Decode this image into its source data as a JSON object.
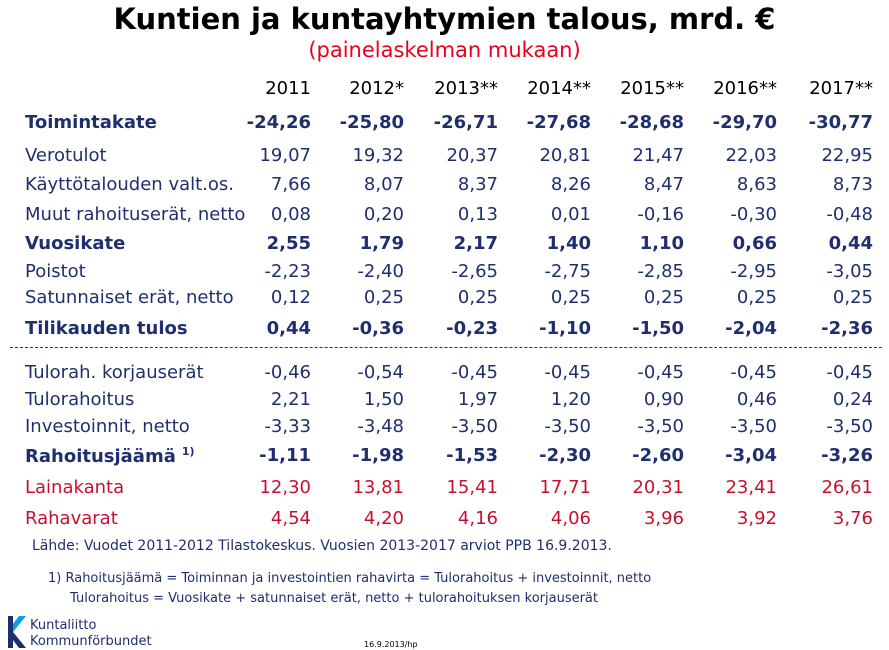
{
  "title": "Kuntien ja kuntayhtymien talous, mrd. €",
  "subtitle": "(painelaskelman mukaan)",
  "years": [
    "2011",
    "2012*",
    "2013**",
    "2014**",
    "2015**",
    "2016**",
    "2017**"
  ],
  "rows": [
    {
      "label": "Toimintakate",
      "style": "bold",
      "values": [
        "-24,26",
        "-25,80",
        "-26,71",
        "-27,68",
        "-28,68",
        "-29,70",
        "-30,77"
      ]
    },
    {
      "label": "Verotulot",
      "style": "normal",
      "values": [
        "19,07",
        "19,32",
        "20,37",
        "20,81",
        "21,47",
        "22,03",
        "22,95"
      ]
    },
    {
      "label": "Käyttötalouden valt.os.",
      "style": "normal",
      "values": [
        "7,66",
        "8,07",
        "8,37",
        "8,26",
        "8,47",
        "8,63",
        "8,73"
      ]
    },
    {
      "label": "Muut rahoituserät, netto",
      "style": "normal",
      "values": [
        "0,08",
        "0,20",
        "0,13",
        "0,01",
        "-0,16",
        "-0,30",
        "-0,48"
      ]
    },
    {
      "label": "Vuosikate",
      "style": "bold",
      "values": [
        "2,55",
        "1,79",
        "2,17",
        "1,40",
        "1,10",
        "0,66",
        "0,44"
      ]
    },
    {
      "label": "Poistot",
      "style": "normal",
      "values": [
        "-2,23",
        "-2,40",
        "-2,65",
        "-2,75",
        "-2,85",
        "-2,95",
        "-3,05"
      ]
    },
    {
      "label": "Satunnaiset erät, netto",
      "style": "normal",
      "values": [
        "0,12",
        "0,25",
        "0,25",
        "0,25",
        "0,25",
        "0,25",
        "0,25"
      ]
    },
    {
      "label": "Tilikauden tulos",
      "style": "bold",
      "values": [
        "0,44",
        "-0,36",
        "-0,23",
        "-1,10",
        "-1,50",
        "-2,04",
        "-2,36"
      ]
    },
    {
      "label": "Tulorah. korjauserät",
      "style": "normal",
      "values": [
        "-0,46",
        "-0,54",
        "-0,45",
        "-0,45",
        "-0,45",
        "-0,45",
        "-0,45"
      ]
    },
    {
      "label": "Tulorahoitus",
      "style": "normal",
      "values": [
        "2,21",
        "1,50",
        "1,97",
        "1,20",
        "0,90",
        "0,46",
        "0,24"
      ]
    },
    {
      "label": "Investoinnit, netto",
      "style": "normal",
      "values": [
        "-3,33",
        "-3,48",
        "-3,50",
        "-3,50",
        "-3,50",
        "-3,50",
        "-3,50"
      ]
    },
    {
      "label": "Rahoitusjäämä",
      "sup": "1)",
      "style": "bold",
      "values": [
        "-1,11",
        "-1,98",
        "-1,53",
        "-2,30",
        "-2,60",
        "-3,04",
        "-3,26"
      ]
    },
    {
      "label": "Lainakanta",
      "style": "red",
      "values": [
        "12,30",
        "13,81",
        "15,41",
        "17,71",
        "20,31",
        "23,41",
        "26,61"
      ]
    },
    {
      "label": "Rahavarat",
      "style": "red",
      "values": [
        "4,54",
        "4,20",
        "4,16",
        "4,06",
        "3,96",
        "3,92",
        "3,76"
      ]
    }
  ],
  "source": "Lähde: Vuodet 2011-2012 Tilastokeskus. Vuosien 2013-2017 arviot PPB 16.9.2013.",
  "footnote1": "1) Rahoitusjäämä = Toiminnan ja investointien rahavirta = Tulorahoitus + investoinnit, netto",
  "footnote2": "Tulorahoitus = Vuosikate + satunnaiset erät, netto + tulorahoituksen korjauserät",
  "logo": {
    "line1": "Kuntaliitto",
    "line2": "Kommunförbundet",
    "icon": "kuntaliitto-k-logo",
    "color": "#1f2f6e",
    "accent": "#00a3e0"
  },
  "date_note": "16.9.2013/hp"
}
